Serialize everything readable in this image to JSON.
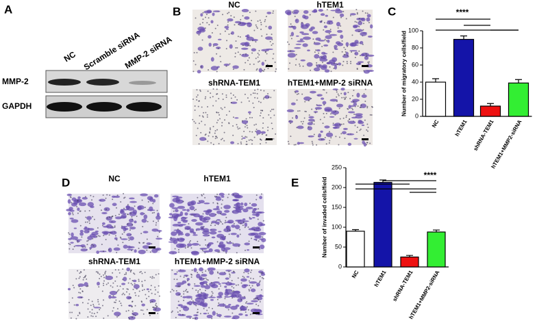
{
  "panel_a": {
    "label": "A",
    "lanes": [
      "NC",
      "Scramble siRNA",
      "MMP-2 siRNA"
    ],
    "rows": [
      "MMP-2",
      "GAPDH"
    ]
  },
  "panel_b": {
    "label": "B",
    "captions": [
      "NC",
      "hTEM1",
      "shRNA-TEM1",
      "hTEM1+MMP-2 siRNA"
    ]
  },
  "panel_d": {
    "label": "D",
    "captions": [
      "NC",
      "hTEM1",
      "shRNA-TEM1",
      "hTEM1+MMP-2 siRNA"
    ]
  },
  "chart_data": [
    {
      "type": "bar",
      "panel_label": "C",
      "y_label": "Number of migratory cells/field",
      "annotation": "****",
      "categories": [
        "NC",
        "hTEM1",
        "shRNA-TEM1",
        "hTEM1+MMP2-siRNA"
      ],
      "values": [
        40,
        90,
        12,
        39
      ],
      "errors": [
        4,
        4,
        3,
        4
      ],
      "colors": [
        "#ffffff",
        "#1414a8",
        "#ee1111",
        "#33ee33"
      ],
      "ylim": [
        0,
        100
      ],
      "yticks": [
        0,
        20,
        40,
        60,
        80,
        100
      ]
    },
    {
      "type": "bar",
      "panel_label": "E",
      "y_label": "Number of invaded cells/field",
      "annotation": "****",
      "categories": [
        "NC",
        "hTEM1",
        "shRNA-TEM1",
        "hTEM1+MMP2-siRNA"
      ],
      "values": [
        90,
        213,
        25,
        88
      ],
      "errors": [
        4,
        6,
        4,
        5
      ],
      "colors": [
        "#ffffff",
        "#1414a8",
        "#ee1111",
        "#33ee33"
      ],
      "ylim": [
        0,
        250
      ],
      "yticks": [
        0,
        50,
        100,
        150,
        200,
        250
      ]
    }
  ]
}
